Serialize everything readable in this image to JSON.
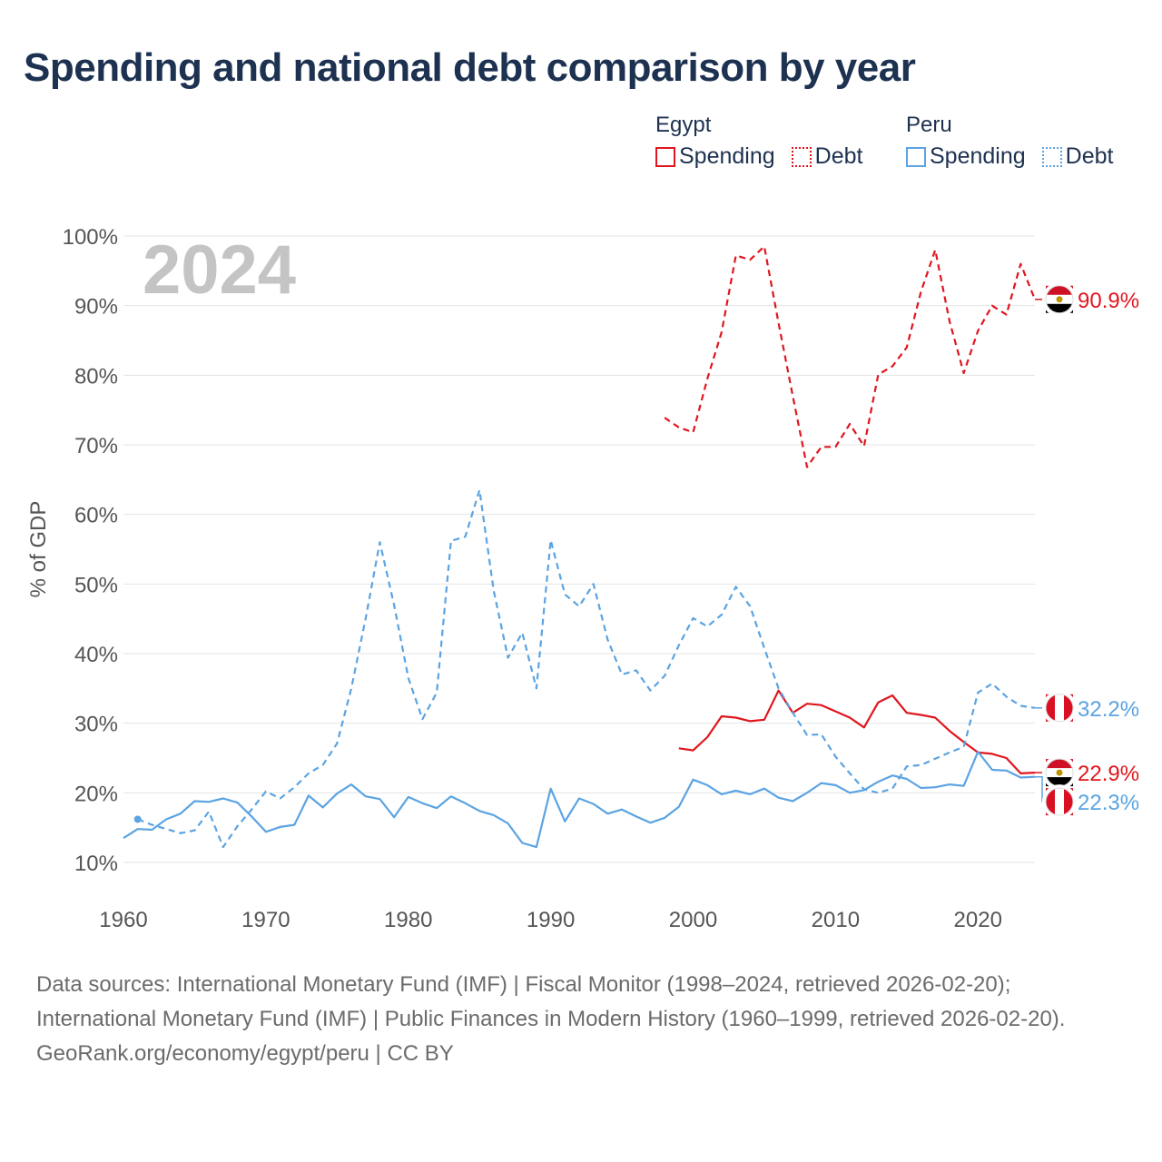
{
  "title": "Spending and national debt comparison by year",
  "legend": {
    "groups": [
      {
        "country": "Egypt",
        "color": "#e0161e",
        "items": [
          {
            "label": "Spending",
            "style": "solid"
          },
          {
            "label": "Debt",
            "style": "dotted"
          }
        ]
      },
      {
        "country": "Peru",
        "color": "#5ba3e2",
        "items": [
          {
            "label": "Spending",
            "style": "solid"
          },
          {
            "label": "Debt",
            "style": "dotted"
          }
        ]
      }
    ]
  },
  "chart_data": {
    "type": "line",
    "year_label": "2024",
    "ylabel": "% of GDP",
    "xlim": [
      1960,
      2024
    ],
    "ylim": [
      10,
      100
    ],
    "x_ticks": [
      1960,
      1970,
      1980,
      1990,
      2000,
      2010,
      2020
    ],
    "x_tick_labels": [
      "1960",
      "1970",
      "1980",
      "1990",
      "2000",
      "2010",
      "2020"
    ],
    "y_ticks": [
      10,
      20,
      30,
      40,
      50,
      60,
      70,
      80,
      90,
      100
    ],
    "y_tick_labels": [
      "10%",
      "20%",
      "30%",
      "40%",
      "50%",
      "60%",
      "70%",
      "80%",
      "90%",
      "100%"
    ],
    "series": [
      {
        "name": "Egypt Spending",
        "country": "Egypt",
        "color": "#e0161e",
        "dash": "solid",
        "end_label": "22.9%",
        "x": [
          1999,
          2000,
          2001,
          2002,
          2003,
          2004,
          2005,
          2006,
          2007,
          2008,
          2009,
          2010,
          2011,
          2012,
          2013,
          2014,
          2015,
          2016,
          2017,
          2018,
          2019,
          2020,
          2021,
          2022,
          2023,
          2024
        ],
        "y": [
          26.4,
          26.1,
          28.0,
          31.0,
          30.8,
          30.3,
          30.5,
          34.7,
          31.5,
          32.8,
          32.6,
          31.7,
          30.8,
          29.4,
          33.0,
          34.0,
          31.5,
          31.2,
          30.8,
          28.9,
          27.3,
          25.8,
          25.6,
          25.0,
          22.8,
          22.9
        ]
      },
      {
        "name": "Egypt Debt",
        "country": "Egypt",
        "color": "#e0161e",
        "dash": "dashed",
        "end_label": "90.9%",
        "x": [
          1998,
          1999,
          2000,
          2001,
          2002,
          2003,
          2004,
          2005,
          2006,
          2007,
          2008,
          2009,
          2010,
          2011,
          2012,
          2013,
          2014,
          2015,
          2016,
          2017,
          2018,
          2019,
          2020,
          2021,
          2022,
          2023,
          2024
        ],
        "y": [
          73.9,
          72.5,
          71.8,
          79.5,
          86.2,
          97.2,
          96.6,
          98.5,
          87.5,
          77.0,
          66.8,
          69.7,
          69.7,
          73.0,
          69.8,
          80.1,
          81.3,
          84.0,
          92.0,
          98.0,
          87.8,
          80.3,
          86.4,
          90.0,
          88.7,
          96.0,
          90.9
        ]
      },
      {
        "name": "Peru Spending",
        "country": "Peru",
        "color": "#5ba3e2",
        "dash": "solid",
        "end_label": "22.3%",
        "x": [
          1960,
          1961,
          1962,
          1963,
          1964,
          1965,
          1966,
          1967,
          1968,
          1969,
          1970,
          1971,
          1972,
          1973,
          1974,
          1975,
          1976,
          1977,
          1978,
          1979,
          1980,
          1981,
          1982,
          1983,
          1984,
          1985,
          1986,
          1987,
          1988,
          1989,
          1990,
          1991,
          1992,
          1993,
          1994,
          1995,
          1996,
          1997,
          1998,
          1999,
          2000,
          2001,
          2002,
          2003,
          2004,
          2005,
          2006,
          2007,
          2008,
          2009,
          2010,
          2011,
          2012,
          2013,
          2014,
          2015,
          2016,
          2017,
          2018,
          2019,
          2020,
          2021,
          2022,
          2023,
          2024
        ],
        "y": [
          13.5,
          14.8,
          14.7,
          16.2,
          17.0,
          18.8,
          18.7,
          19.2,
          18.6,
          16.6,
          14.4,
          15.1,
          15.4,
          19.6,
          17.9,
          19.9,
          21.2,
          19.5,
          19.1,
          16.5,
          19.4,
          18.5,
          17.8,
          19.5,
          18.5,
          17.4,
          16.8,
          15.6,
          12.8,
          12.2,
          20.6,
          15.9,
          19.2,
          18.4,
          17.0,
          17.6,
          16.6,
          15.7,
          16.4,
          18.0,
          21.9,
          21.1,
          19.8,
          20.3,
          19.8,
          20.6,
          19.3,
          18.8,
          20.0,
          21.4,
          21.1,
          20.0,
          20.4,
          21.6,
          22.5,
          22.0,
          20.7,
          20.8,
          21.2,
          21.0,
          25.9,
          23.3,
          23.2,
          22.2,
          22.3
        ]
      },
      {
        "name": "Peru Debt",
        "country": "Peru",
        "color": "#5ba3e2",
        "dash": "dashed",
        "end_label": "32.2%",
        "x": [
          1961,
          1962,
          1963,
          1964,
          1965,
          1966,
          1967,
          1968,
          1969,
          1970,
          1971,
          1972,
          1973,
          1974,
          1975,
          1976,
          1977,
          1978,
          1979,
          1980,
          1981,
          1982,
          1983,
          1984,
          1985,
          1986,
          1987,
          1988,
          1989,
          1990,
          1991,
          1992,
          1993,
          1994,
          1995,
          1996,
          1997,
          1998,
          1999,
          2000,
          2001,
          2002,
          2003,
          2004,
          2005,
          2006,
          2007,
          2008,
          2009,
          2010,
          2011,
          2012,
          2013,
          2014,
          2015,
          2016,
          2017,
          2018,
          2019,
          2020,
          2021,
          2022,
          2023,
          2024
        ],
        "y": [
          16.2,
          15.4,
          14.8,
          14.2,
          14.6,
          17.3,
          12.2,
          15.2,
          17.6,
          20.2,
          19.2,
          20.8,
          22.8,
          24.0,
          27.1,
          35.0,
          45.0,
          56.0,
          47.0,
          36.5,
          30.6,
          34.4,
          56.2,
          56.8,
          63.5,
          49.0,
          39.4,
          43.0,
          35.0,
          56.3,
          48.5,
          46.8,
          50.0,
          42.0,
          37.0,
          37.6,
          34.7,
          36.8,
          41.2,
          45.1,
          43.9,
          45.6,
          49.6,
          46.8,
          40.8,
          35.0,
          31.5,
          28.3,
          28.4,
          25.2,
          22.8,
          20.5,
          20.0,
          20.6,
          23.8,
          24.0,
          24.9,
          25.8,
          26.6,
          34.4,
          35.7,
          33.8,
          32.5,
          32.2
        ]
      }
    ]
  },
  "footer": {
    "sources": "Data sources: International Monetary Fund (IMF) | Fiscal Monitor (1998–2024, retrieved 2026-02-20); International Monetary Fund (IMF) | Public Finances in Modern History (1960–1999, retrieved 2026-02-20).",
    "credit": "GeoRank.org/economy/egypt/peru | CC BY"
  }
}
